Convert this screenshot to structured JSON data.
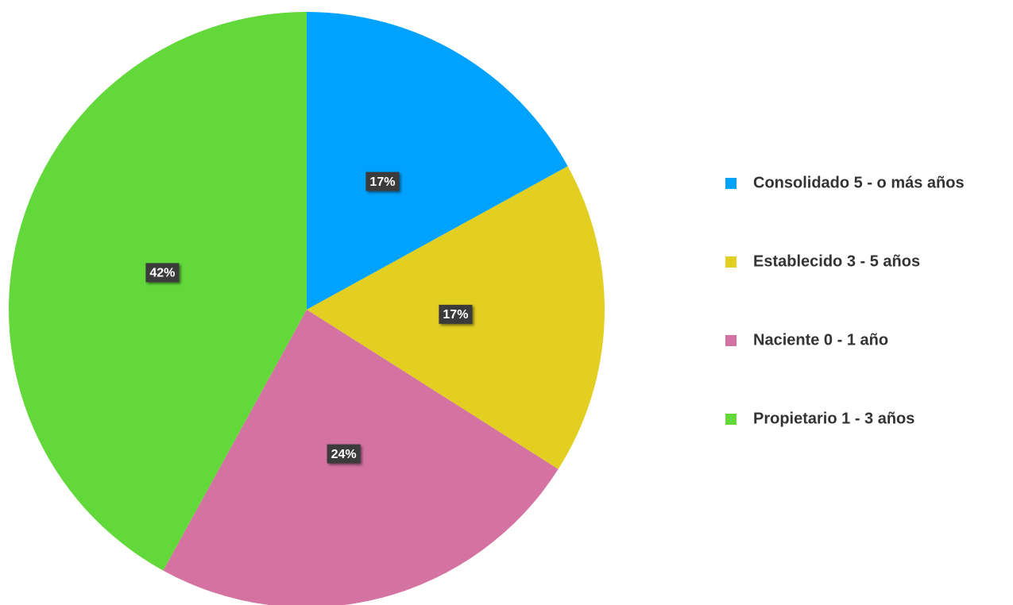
{
  "chart_data": {
    "type": "pie",
    "categories": [
      "Consolidado 5 - o más años",
      "Establecido 3 - 5 años",
      "Naciente 0 - 1 año",
      "Propietario 1 - 3 años"
    ],
    "values": [
      17,
      17,
      24,
      42
    ],
    "value_labels": [
      "17%",
      "17%",
      "24%",
      "42%"
    ],
    "colors": [
      "#00a2ff",
      "#e2cf22",
      "#d472a2",
      "#62d83a"
    ],
    "legend": "right"
  }
}
